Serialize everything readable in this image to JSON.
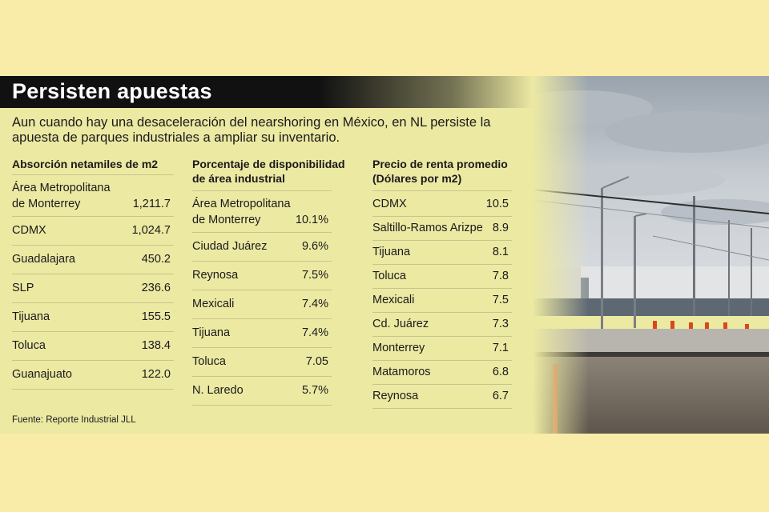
{
  "title": "Persisten apuestas",
  "subtitle": "Aun cuando hay una desaceleración del nearshoring en México, en NL persiste la apuesta de parques industriales a ampliar su inventario.",
  "col1": {
    "header": "Absorción netamiles de m2",
    "rows": [
      {
        "name_l1": "Área Metropolitana",
        "name_l2": "de Monterrey",
        "value": "1,211.7"
      },
      {
        "name": "CDMX",
        "value": "1,024.7"
      },
      {
        "name": "Guadalajara",
        "value": "450.2"
      },
      {
        "name": "SLP",
        "value": "236.6"
      },
      {
        "name": "Tijuana",
        "value": "155.5"
      },
      {
        "name": "Toluca",
        "value": "138.4"
      },
      {
        "name": "Guanajuato",
        "value": "122.0"
      }
    ]
  },
  "col2": {
    "header_l1": "Porcentaje de disponibilidad",
    "header_l2": "de área industrial",
    "rows": [
      {
        "name_l1": "Área Metropolitana",
        "name_l2": "de Monterrey",
        "value": "10.1%"
      },
      {
        "name": "Ciudad Juárez",
        "value": "9.6%"
      },
      {
        "name": "Reynosa",
        "value": "7.5%"
      },
      {
        "name": "Mexicali",
        "value": "7.4%"
      },
      {
        "name": "Tijuana",
        "value": "7.4%"
      },
      {
        "name": "Toluca",
        "value": "7.05"
      },
      {
        "name": "N. Laredo",
        "value": "5.7%"
      }
    ]
  },
  "col3": {
    "header_l1": "Precio de renta promedio",
    "header_l2": "(Dólares por m2)",
    "rows": [
      {
        "name": "CDMX",
        "value": "10.5"
      },
      {
        "name": "Saltillo-Ramos Arizpe",
        "value": "8.9"
      },
      {
        "name": "Tijuana",
        "value": "8.1"
      },
      {
        "name": "Toluca",
        "value": "7.8"
      },
      {
        "name": "Mexicali",
        "value": "7.5"
      },
      {
        "name": "Cd. Juárez",
        "value": "7.3"
      },
      {
        "name": "Monterrey",
        "value": "7.1"
      },
      {
        "name": "Matamoros",
        "value": "6.8"
      },
      {
        "name": "Reynosa",
        "value": "6.7"
      }
    ]
  },
  "source": "Fuente: Reporte Industrial JLL",
  "colors": {
    "page_bg": "#f9eba8",
    "panel_bg": "#ece9a3",
    "title_bar": "#111111",
    "title_text": "#ffffff",
    "rule": "#c9c58a"
  }
}
